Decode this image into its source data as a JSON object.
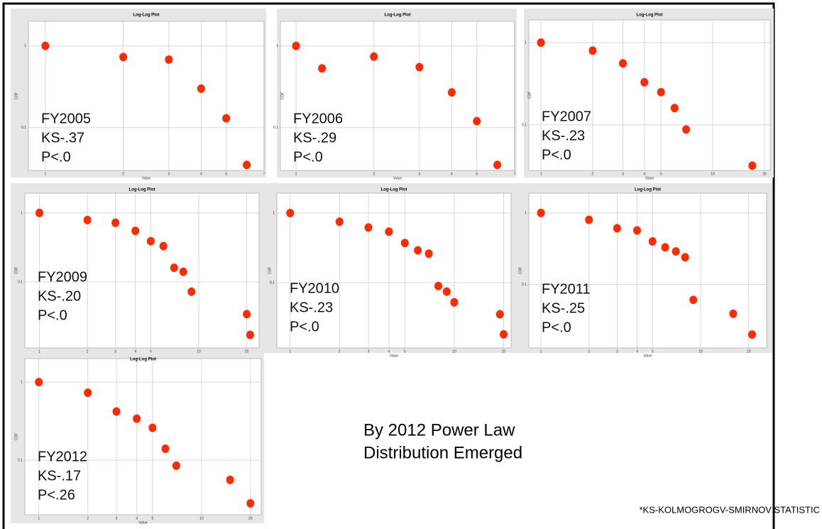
{
  "page": {
    "headline": [
      "By 2012 Power Law",
      "Distribution Emerged"
    ],
    "footnote": "*KS-KOLMOGROGV-SMIRNOV STATISTIC"
  },
  "chart_data": [
    {
      "type": "scatter",
      "title": "Log-Log Plot",
      "x_label": "Value",
      "y_label": "CDF",
      "annotations": [
        "FY2005",
        "KS-.37",
        "P<.0"
      ],
      "color": "#ff2a00",
      "xlog": true,
      "ylog": true,
      "grid": true,
      "x": [
        1,
        2,
        3,
        4,
        5,
        6
      ],
      "values": [
        1,
        0.73,
        0.68,
        0.3,
        0.13,
        0.035
      ],
      "xlim": [
        0.86,
        7
      ],
      "ylim": [
        0.03,
        2
      ],
      "xticks": [
        1,
        2,
        3,
        4,
        5,
        7
      ],
      "yticks": [
        1,
        0.1
      ]
    },
    {
      "type": "scatter",
      "title": "Log-Log Plot",
      "x_label": "Value",
      "y_label": "CDF",
      "annotations": [
        "FY2006",
        "KS-.29",
        "P<.0"
      ],
      "color": "#ff2a00",
      "xlog": true,
      "ylog": true,
      "grid": true,
      "x": [
        1,
        1.26,
        2,
        3,
        4,
        5,
        6
      ],
      "values": [
        1,
        0.53,
        0.74,
        0.55,
        0.27,
        0.12,
        0.035
      ],
      "xlim": [
        0.87,
        7
      ],
      "ylim": [
        0.03,
        2
      ],
      "xticks": [
        1,
        2,
        3,
        4,
        5,
        7
      ],
      "yticks": [
        1,
        0.1
      ]
    },
    {
      "type": "scatter",
      "title": "Log-Log Plot",
      "x_label": "Value",
      "y_label": "CDF",
      "annotations": [
        "FY2007",
        "KS-.23",
        "P<.0"
      ],
      "color": "#ff2a00",
      "xlog": true,
      "ylog": true,
      "grid": true,
      "x": [
        1,
        2,
        3,
        4,
        5,
        6,
        7,
        17
      ],
      "values": [
        1,
        0.8,
        0.56,
        0.33,
        0.25,
        0.16,
        0.088,
        0.032
      ],
      "xlim": [
        0.85,
        21.6
      ],
      "ylim": [
        0.028,
        1.89
      ],
      "xticks": [
        1,
        2,
        3,
        4,
        5,
        10,
        20
      ],
      "yticks": [
        1,
        0.1
      ]
    },
    {
      "type": "scatter",
      "title": "Log-Log Plot",
      "x_label": "Value",
      "y_label": "CDF",
      "annotations": [
        "FY2009",
        "KS-.20",
        "P<.0"
      ],
      "color": "#ff2a00",
      "xlog": true,
      "ylog": true,
      "grid": true,
      "x": [
        1,
        2,
        3,
        4,
        5,
        6,
        7,
        8,
        9,
        20,
        21
      ],
      "values": [
        1,
        0.79,
        0.72,
        0.55,
        0.39,
        0.33,
        0.16,
        0.14,
        0.072,
        0.034,
        0.017
      ],
      "xlim": [
        0.81,
        23.9
      ],
      "ylim": [
        0.011,
        1.94
      ],
      "xticks": [
        1,
        2,
        3,
        4,
        5,
        10,
        20
      ],
      "yticks": [
        1,
        0.1
      ]
    },
    {
      "type": "scatter",
      "title": "Log-Log Plot",
      "x_label": "Value",
      "y_label": "CDF",
      "annotations": [
        "FY2010",
        "KS-.23",
        "P<.0"
      ],
      "color": "#ff2a00",
      "xlog": true,
      "ylog": true,
      "grid": true,
      "x": [
        1,
        2,
        3,
        4,
        5,
        6,
        7,
        8,
        9,
        10,
        19,
        20
      ],
      "values": [
        1,
        0.75,
        0.62,
        0.54,
        0.37,
        0.29,
        0.26,
        0.089,
        0.074,
        0.052,
        0.035,
        0.018
      ],
      "xlim": [
        0.83,
        22.2
      ],
      "ylim": [
        0.0115,
        1.93
      ],
      "xticks": [
        1,
        2,
        3,
        4,
        5,
        10,
        20
      ],
      "yticks": [
        1,
        0.1
      ]
    },
    {
      "type": "scatter",
      "title": "Log-Log Plot",
      "x_label": "Value",
      "y_label": "CDF",
      "annotations": [
        "FY2011",
        "KS-.25",
        "P<.0"
      ],
      "color": "#ff2a00",
      "xlog": true,
      "ylog": true,
      "grid": true,
      "x": [
        1,
        2,
        3,
        4,
        5,
        6,
        7,
        8,
        9,
        16,
        21
      ],
      "values": [
        1,
        0.8,
        0.61,
        0.57,
        0.4,
        0.33,
        0.29,
        0.24,
        0.061,
        0.039,
        0.02
      ],
      "xlim": [
        0.84,
        25.9
      ],
      "ylim": [
        0.013,
        1.89
      ],
      "xticks": [
        1,
        2,
        3,
        4,
        5,
        10,
        20
      ],
      "yticks": [
        1,
        0.1
      ]
    },
    {
      "type": "scatter",
      "title": "Log-Log Plot",
      "x_label": "Value",
      "y_label": "CDF",
      "annotations": [
        "FY2012",
        "KS-.17",
        "P<.26"
      ],
      "color": "#ff2a00",
      "xlog": true,
      "ylog": true,
      "grid": true,
      "x": [
        1,
        2,
        3,
        4,
        5,
        6,
        7,
        15,
        20
      ],
      "values": [
        1,
        0.73,
        0.42,
        0.34,
        0.26,
        0.14,
        0.085,
        0.056,
        0.028
      ],
      "xlim": [
        0.82,
        23.3
      ],
      "ylim": [
        0.02,
        2
      ],
      "xticks": [
        1,
        2,
        3,
        4,
        5,
        10,
        20
      ],
      "yticks": [
        1,
        0.1
      ]
    }
  ]
}
